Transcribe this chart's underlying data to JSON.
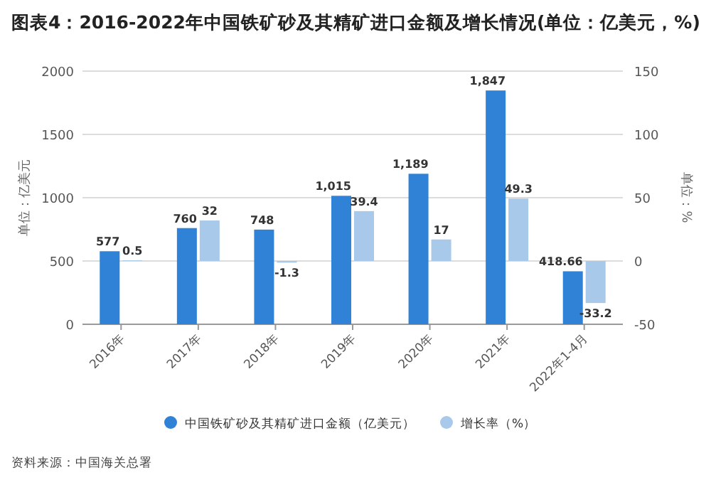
{
  "chart_data": {
    "type": "bar",
    "title": "图表4：2016-2022年中国铁矿砂及其精矿进口金额及增长情况(单位：亿美元，%)",
    "categories": [
      "2016年",
      "2017年",
      "2018年",
      "2019年",
      "2020年",
      "2021年",
      "2022年1-4月"
    ],
    "series": [
      {
        "name": "中国铁矿砂及其精矿进口金额（亿美元）",
        "color": "#2f82d6",
        "values": [
          577,
          760,
          748,
          1015,
          1189,
          1847,
          418.66
        ],
        "value_labels": [
          "577",
          "760",
          "748",
          "1,015",
          "1,189",
          "1,847",
          "418.66"
        ]
      },
      {
        "name": "增长率（%）",
        "color": "#a9c9ea",
        "axis": "y2",
        "values": [
          0.5,
          32,
          -1.3,
          39.4,
          17,
          49.3,
          -33.2
        ],
        "value_labels": [
          "0.5",
          "32",
          "-1.3",
          "39.4",
          "17",
          "49.3",
          "-33.2"
        ]
      }
    ],
    "ylabel": "单位：亿美元",
    "y2label": "单位：%",
    "ylim": [
      0,
      2000
    ],
    "yticks": [
      0,
      500,
      1000,
      1500,
      2000
    ],
    "y2lim": [
      -50,
      150
    ],
    "y2ticks": [
      -50,
      0,
      50,
      100,
      150
    ],
    "grid": "y",
    "legend": "bottom",
    "annotations": [
      "资料来源：中国海关总署"
    ]
  }
}
